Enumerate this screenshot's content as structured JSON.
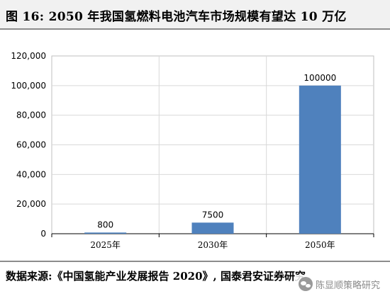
{
  "figure": {
    "title": "图 16:  2050 年我国氢燃料电池汽车市场规模有望达 10 万亿",
    "source": "数据来源:《中国氢能产业发展报告 2020》, 国泰君安证券研究",
    "watermark": "陈显顺策略研究",
    "watermark_icon": "wechat-icon"
  },
  "chart_data": {
    "type": "bar",
    "categories": [
      "2025年",
      "2030年",
      "2050年"
    ],
    "values": [
      800,
      7500,
      100000
    ],
    "data_labels": [
      "800",
      "7500",
      "100000"
    ],
    "ylim": [
      0,
      120000
    ],
    "yticks": [
      0,
      20000,
      40000,
      60000,
      80000,
      100000,
      120000
    ],
    "ytick_labels": [
      "0",
      "20,000",
      "40,000",
      "60,000",
      "80,000",
      "100,000",
      "120,000"
    ],
    "xlabel": "",
    "ylabel": "",
    "grid": true,
    "bar_color": "#4f81bd",
    "grid_color": "#d9d9d9"
  }
}
